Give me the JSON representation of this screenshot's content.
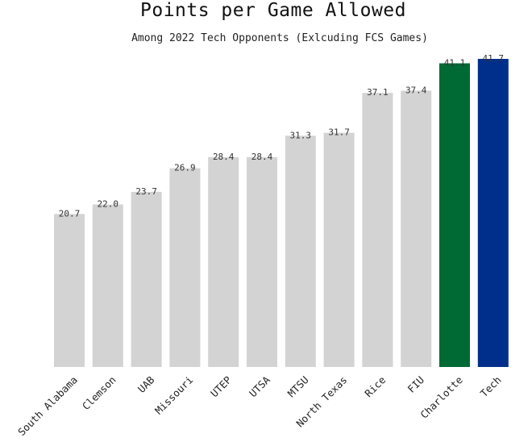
{
  "chart_data": {
    "type": "bar",
    "title": "Points per Game Allowed",
    "subtitle": "Among 2022 Tech Opponents (Exlcuding FCS Games)",
    "xlabel": "",
    "ylabel": "",
    "categories": [
      "South Alabama",
      "Clemson",
      "UAB",
      "Missouri",
      "UTEP",
      "UTSA",
      "MTSU",
      "North Texas",
      "Rice",
      "FIU",
      "Charlotte",
      "Tech"
    ],
    "values": [
      20.7,
      22.0,
      23.7,
      26.9,
      28.4,
      28.4,
      31.3,
      31.7,
      37.1,
      37.4,
      41.1,
      41.7
    ],
    "value_labels": [
      "20.7",
      "22.0",
      "23.7",
      "26.9",
      "28.4",
      "28.4",
      "31.3",
      "31.7",
      "37.1",
      "37.4",
      "41.1",
      "41.7"
    ],
    "ylim": [
      0,
      41.7
    ],
    "grid": false,
    "colors": [
      "#d3d3d3",
      "#d3d3d3",
      "#d3d3d3",
      "#d3d3d3",
      "#d3d3d3",
      "#d3d3d3",
      "#d3d3d3",
      "#d3d3d3",
      "#d3d3d3",
      "#d3d3d3",
      "#006a35",
      "#002f8b"
    ]
  }
}
